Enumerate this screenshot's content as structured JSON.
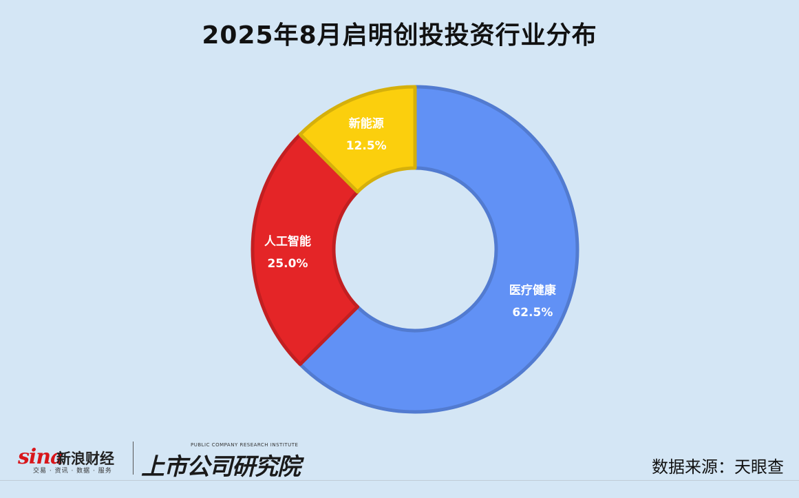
{
  "title": "2025年8月启明创投投资行业分布",
  "chart_data": {
    "type": "pie",
    "donut": true,
    "title": "2025年8月启明创投投资行业分布",
    "slices": [
      {
        "label": "医疗健康",
        "value": 62.5,
        "value_label": "62.5%",
        "color": "#6191f5"
      },
      {
        "label": "人工智能",
        "value": 25.0,
        "value_label": "25.0%",
        "color": "#e42527"
      },
      {
        "label": "新能源",
        "value": 12.5,
        "value_label": "12.5%",
        "color": "#fbcf0d"
      }
    ],
    "start_angle_deg": 0,
    "direction": "clockwise",
    "legend": "none"
  },
  "footer": {
    "sina_logo_word": "sina",
    "sina_logo_name": "新浪财经",
    "sina_logo_sub": "交易 · 资讯 · 数据 · 服务",
    "research_logo_en": "PUBLIC COMPANY RESEARCH INSTITUTE",
    "research_logo_cn": "上市公司研究院",
    "source": "数据来源：天眼查"
  }
}
